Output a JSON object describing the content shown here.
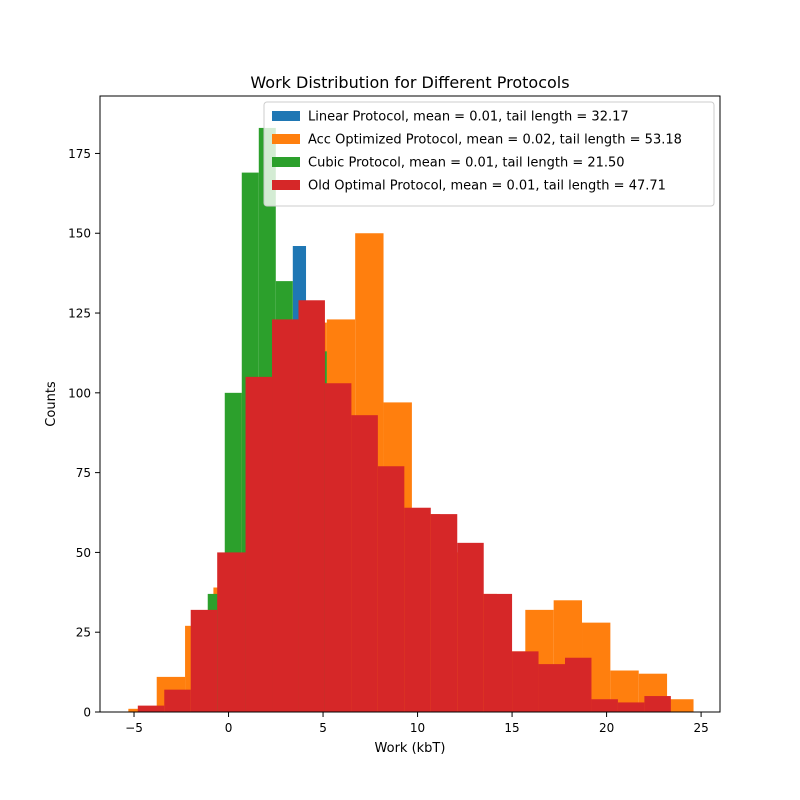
{
  "chart_data": {
    "type": "bar",
    "title": "Work Distribution for Different Protocols",
    "xlabel": "Work (kbT)",
    "ylabel": "Counts",
    "xlim": [
      -6.8,
      26.0
    ],
    "ylim": [
      0,
      193
    ],
    "xticks": [
      -5,
      0,
      5,
      10,
      15,
      20,
      25
    ],
    "xtick_labels": [
      "−5",
      "0",
      "5",
      "10",
      "15",
      "20",
      "25"
    ],
    "yticks": [
      0,
      25,
      50,
      75,
      100,
      125,
      150,
      175
    ],
    "grid": false,
    "legend_position": "top-right",
    "series": [
      {
        "name": "Linear Protocol, mean = 0.01, tail length = 32.17",
        "color": "#1f77b4",
        "bins": [
          [
            3.4,
            4.1,
            146
          ],
          [
            4.1,
            5.0,
            118
          ]
        ]
      },
      {
        "name": "Acc Optimized Protocol, mean = 0.02, tail length = 53.18",
        "color": "#ff7f0e",
        "bins": [
          [
            -5.3,
            -3.8,
            1
          ],
          [
            -3.8,
            -2.3,
            11
          ],
          [
            -2.3,
            -0.8,
            27
          ],
          [
            -0.8,
            0.7,
            39
          ],
          [
            0.7,
            2.2,
            100
          ],
          [
            2.2,
            3.7,
            101
          ],
          [
            3.7,
            5.2,
            122
          ],
          [
            5.2,
            6.7,
            123
          ],
          [
            6.7,
            8.2,
            150
          ],
          [
            8.2,
            9.7,
            97
          ],
          [
            9.7,
            11.2,
            62
          ],
          [
            11.2,
            12.7,
            50
          ],
          [
            12.7,
            14.2,
            37
          ],
          [
            14.2,
            15.7,
            19
          ],
          [
            15.7,
            17.2,
            32
          ],
          [
            17.2,
            18.7,
            35
          ],
          [
            18.7,
            20.2,
            28
          ],
          [
            20.2,
            21.7,
            13
          ],
          [
            21.7,
            23.2,
            12
          ],
          [
            23.2,
            24.6,
            4
          ]
        ]
      },
      {
        "name": "Cubic Protocol, mean = 0.01, tail length = 21.50",
        "color": "#2ca02c",
        "bins": [
          [
            -1.1,
            -0.2,
            37
          ],
          [
            -0.2,
            0.7,
            100
          ],
          [
            0.7,
            1.6,
            169
          ],
          [
            1.6,
            2.5,
            183
          ],
          [
            2.5,
            3.4,
            135
          ],
          [
            3.4,
            4.3,
            123
          ],
          [
            4.3,
            5.2,
            113
          ]
        ]
      },
      {
        "name": "Old Optimal Protocol, mean = 0.01, tail length = 47.71",
        "color": "#d62728",
        "bins": [
          [
            -4.8,
            -3.4,
            2
          ],
          [
            -3.4,
            -2.0,
            7
          ],
          [
            -2.0,
            -0.6,
            32
          ],
          [
            -0.6,
            0.9,
            50
          ],
          [
            0.9,
            2.3,
            105
          ],
          [
            2.3,
            3.7,
            123
          ],
          [
            3.7,
            5.1,
            129
          ],
          [
            5.1,
            6.5,
            103
          ],
          [
            6.5,
            7.9,
            93
          ],
          [
            7.9,
            9.3,
            77
          ],
          [
            9.3,
            10.7,
            64
          ],
          [
            10.7,
            12.1,
            62
          ],
          [
            12.1,
            13.5,
            53
          ],
          [
            13.5,
            15.0,
            37
          ],
          [
            15.0,
            16.4,
            19
          ],
          [
            16.4,
            17.8,
            15
          ],
          [
            17.8,
            19.2,
            17
          ],
          [
            19.2,
            20.6,
            4
          ],
          [
            20.6,
            22.0,
            3
          ],
          [
            22.0,
            23.4,
            5
          ]
        ]
      }
    ]
  }
}
